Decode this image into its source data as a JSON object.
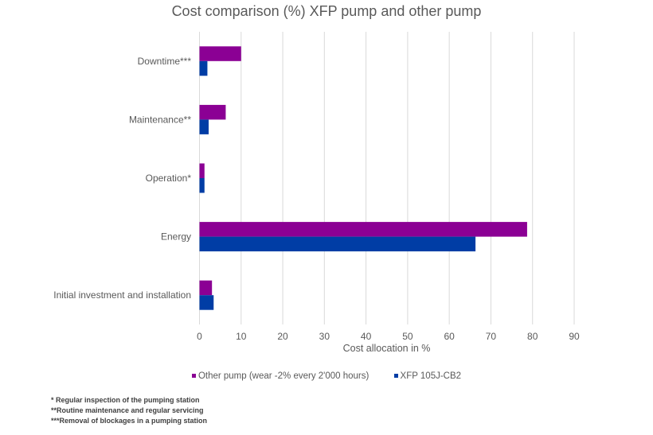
{
  "chart_data": {
    "type": "bar",
    "orientation": "horizontal",
    "title": "Cost comparison (%) XFP pump and other pump",
    "xlabel": "Cost allocation in %",
    "ylabel": "",
    "xlim": [
      0,
      90
    ],
    "xticks": [
      0,
      10,
      20,
      30,
      40,
      50,
      60,
      70,
      80,
      90
    ],
    "grid": true,
    "legend_position": "bottom",
    "categories": [
      "Downtime***",
      "Maintenance**",
      "Operation*",
      "Energy",
      "Initial investment and installation"
    ],
    "series": [
      {
        "name": "Other pump (wear -2% every 2'000 hours)",
        "color": "#8B0094",
        "values": [
          10,
          6.3,
          1.2,
          78.7,
          3.0
        ]
      },
      {
        "name": "XFP 105J-CB2",
        "color": "#003DA5",
        "values": [
          1.9,
          2.2,
          1.2,
          66.3,
          3.4
        ]
      }
    ],
    "notes": [
      "* Regular inspection of the pumping station",
      "**Routine maintenance and regular servicing",
      "***Removal of blockages in a pumping station"
    ]
  }
}
